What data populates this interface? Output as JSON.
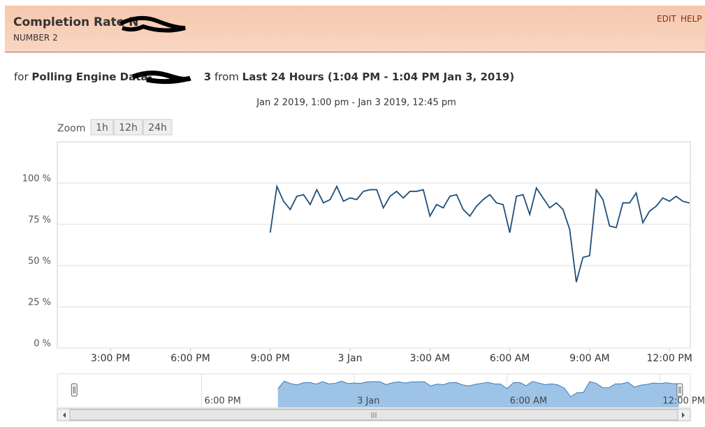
{
  "header": {
    "title": "Completion Rate N",
    "subtitle": "NUMBER 2",
    "links": [
      "EDIT",
      "HELP"
    ]
  },
  "resource": {
    "prefix": "for",
    "entity": "Polling Engine Data-",
    "entity_suffix": "3",
    "connector": "from",
    "range": "Last 24 Hours (1:04 PM - 1:04 PM Jan 3, 2019)"
  },
  "chart_data": {
    "type": "line",
    "subtitle": "Jan 2 2019, 1:00 pm - Jan 3 2019, 12:45 pm",
    "zoom_label": "Zoom",
    "zoom_buttons": [
      "1h",
      "12h",
      "24h"
    ],
    "x": [
      "2019-01-02T21:00",
      "2019-01-02T21:15",
      "2019-01-02T21:30",
      "2019-01-02T21:45",
      "2019-01-02T22:00",
      "2019-01-02T22:15",
      "2019-01-02T22:30",
      "2019-01-02T22:45",
      "2019-01-02T23:00",
      "2019-01-02T23:15",
      "2019-01-02T23:30",
      "2019-01-02T23:45",
      "2019-01-03T00:00",
      "2019-01-03T00:15",
      "2019-01-03T00:30",
      "2019-01-03T00:45",
      "2019-01-03T01:00",
      "2019-01-03T01:15",
      "2019-01-03T01:30",
      "2019-01-03T01:45",
      "2019-01-03T02:00",
      "2019-01-03T02:15",
      "2019-01-03T02:30",
      "2019-01-03T02:45",
      "2019-01-03T03:00",
      "2019-01-03T03:15",
      "2019-01-03T03:30",
      "2019-01-03T03:45",
      "2019-01-03T04:00",
      "2019-01-03T04:15",
      "2019-01-03T04:30",
      "2019-01-03T04:45",
      "2019-01-03T05:00",
      "2019-01-03T05:15",
      "2019-01-03T05:30",
      "2019-01-03T05:45",
      "2019-01-03T06:00",
      "2019-01-03T06:15",
      "2019-01-03T06:30",
      "2019-01-03T06:45",
      "2019-01-03T07:00",
      "2019-01-03T07:15",
      "2019-01-03T07:30",
      "2019-01-03T07:45",
      "2019-01-03T08:00",
      "2019-01-03T08:15",
      "2019-01-03T08:30",
      "2019-01-03T08:45",
      "2019-01-03T09:00",
      "2019-01-03T09:15",
      "2019-01-03T09:30",
      "2019-01-03T09:45",
      "2019-01-03T10:00",
      "2019-01-03T10:15",
      "2019-01-03T10:30",
      "2019-01-03T10:45",
      "2019-01-03T11:00",
      "2019-01-03T11:15",
      "2019-01-03T11:30",
      "2019-01-03T11:45",
      "2019-01-03T12:00",
      "2019-01-03T12:15",
      "2019-01-03T12:30",
      "2019-01-03T12:45"
    ],
    "series": [
      {
        "color": "#1f4e79",
        "values": [
          70,
          98,
          89,
          84,
          92,
          93,
          87,
          96,
          88,
          90,
          98,
          89,
          91,
          90,
          95,
          96,
          96,
          85,
          92,
          95,
          91,
          95,
          95,
          96,
          80,
          87,
          85,
          92,
          93,
          84,
          80,
          86,
          90,
          93,
          88,
          87,
          70,
          92,
          93,
          81,
          97,
          91,
          85,
          88,
          84,
          72,
          40,
          55,
          56,
          96,
          90,
          74,
          73,
          88,
          88,
          94,
          76,
          83,
          86,
          91,
          89,
          92,
          89,
          88
        ]
      }
    ],
    "xlim": [
      "2019-01-02T13:00",
      "2019-01-03T12:47"
    ],
    "xticks": [
      {
        "value": "2019-01-02T15:00",
        "label": "3:00 PM"
      },
      {
        "value": "2019-01-02T18:00",
        "label": "6:00 PM"
      },
      {
        "value": "2019-01-02T21:00",
        "label": "9:00 PM"
      },
      {
        "value": "2019-01-03T00:00",
        "label": "3 Jan"
      },
      {
        "value": "2019-01-03T03:00",
        "label": "3:00 AM"
      },
      {
        "value": "2019-01-03T06:00",
        "label": "6:00 AM"
      },
      {
        "value": "2019-01-03T09:00",
        "label": "9:00 AM"
      },
      {
        "value": "2019-01-03T12:00",
        "label": "12:00 PM"
      }
    ],
    "ylim": [
      0,
      125
    ],
    "yticks": [
      {
        "value": 0,
        "label": "0 %"
      },
      {
        "value": 25,
        "label": "25 %"
      },
      {
        "value": 50,
        "label": "50 %"
      },
      {
        "value": 75,
        "label": "75 %"
      },
      {
        "value": 100,
        "label": "100 %"
      }
    ],
    "grid": true,
    "navigator": {
      "color": "#9dc3e6",
      "xlim": [
        "2019-01-02T12:20",
        "2019-01-03T13:12"
      ],
      "xticks": [
        {
          "value": "2019-01-02T18:00",
          "label": "6:00 PM"
        },
        {
          "value": "2019-01-03T00:00",
          "label": "3 Jan"
        },
        {
          "value": "2019-01-03T06:00",
          "label": "6:00 AM"
        },
        {
          "value": "2019-01-03T12:00",
          "label": "12:00 PM"
        }
      ]
    }
  }
}
